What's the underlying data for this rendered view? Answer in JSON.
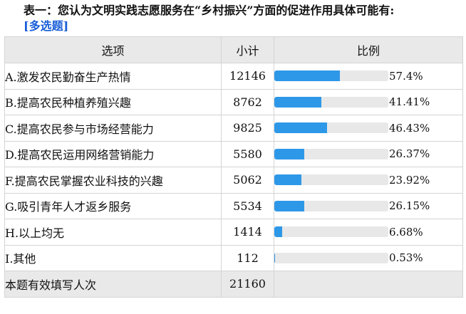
{
  "title": {
    "text": "表一：您认为文明实践志愿服务在“乡村振兴”方面的促进作用具体可能有:",
    "tag": "[多选题]"
  },
  "table": {
    "headers": [
      "选项",
      "小计",
      "比例"
    ],
    "rows": [
      {
        "option": "A.激发农民勤奋生产热情",
        "count": "12146",
        "percent": "57.4%",
        "value": 57.4
      },
      {
        "option": "B.提高农民种植养殖兴趣",
        "count": "8762",
        "percent": "41.41%",
        "value": 41.41
      },
      {
        "option": "C.提高农民参与市场经营能力",
        "count": "9825",
        "percent": "46.43%",
        "value": 46.43
      },
      {
        "option": "D.提高农民运用网络营销能力",
        "count": "5580",
        "percent": "26.37%",
        "value": 26.37
      },
      {
        "option": "F.提高农民掌握农业科技的兴趣",
        "count": "5062",
        "percent": "23.92%",
        "value": 23.92
      },
      {
        "option": "G.吸引青年人才返乡服务",
        "count": "5534",
        "percent": "26.15%",
        "value": 26.15
      },
      {
        "option": "H.以上均无",
        "count": "1414",
        "percent": "6.68%",
        "value": 6.68
      },
      {
        "option": "I.其他",
        "count": "112",
        "percent": "0.53%",
        "value": 0.53
      }
    ],
    "footer": {
      "label": "本题有效填写人次",
      "count": "21160"
    }
  },
  "colors": {
    "bar_fill": "#2e98e8",
    "bar_track": "#e8e8e8",
    "header_bg": "#e9e9e9",
    "tag_color": "#1a5fd8"
  }
}
